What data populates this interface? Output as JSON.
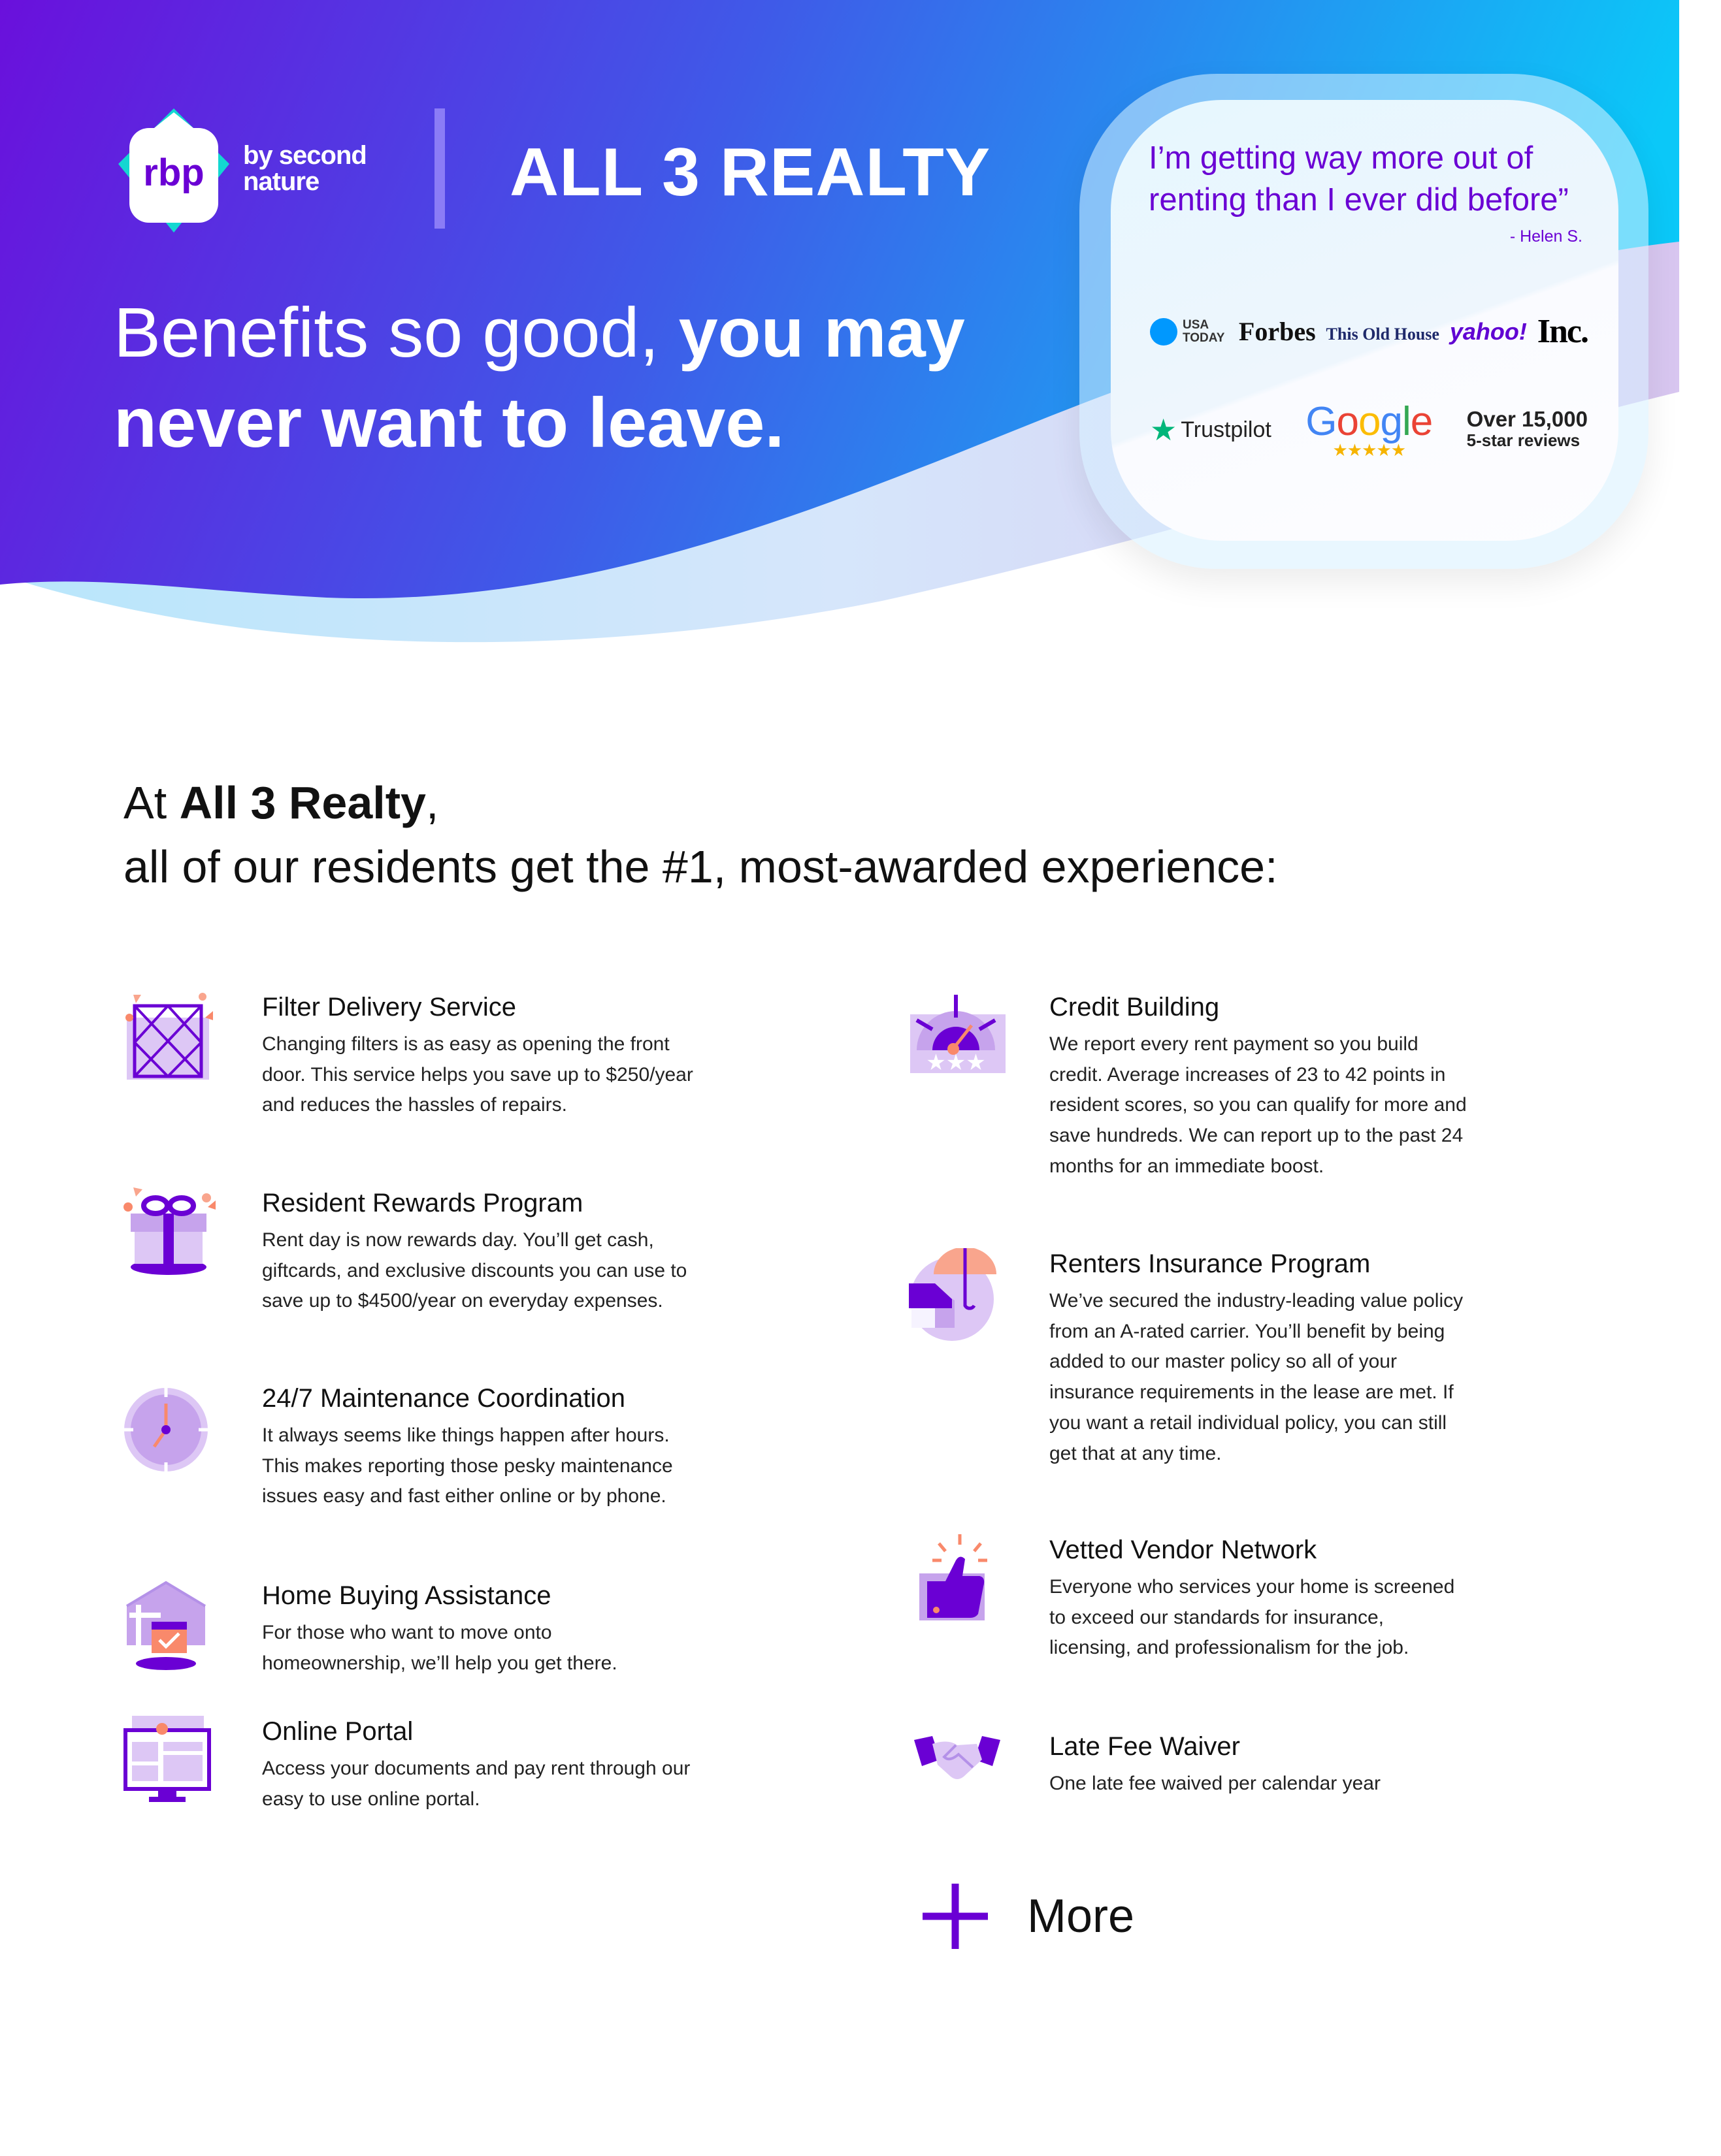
{
  "brand": {
    "logo_text": "rbp",
    "logo_byline": "by second nature",
    "company_name": "ALL 3 REALTY",
    "colors": {
      "primary_purple": "#6a00d4",
      "gradient_start": "#6a10dc",
      "gradient_end": "#0bc8f8",
      "accent_orange": "#f9896b"
    }
  },
  "hero": {
    "headline_regular": "Benefits so good, ",
    "headline_bold": "you may never want to leave."
  },
  "testimonial": {
    "quote": "I’m getting way more out of renting than I ever did before”",
    "author": "- Helen S."
  },
  "press_logos": [
    "USA TODAY",
    "Forbes",
    "This Old House",
    "yahoo!",
    "Inc."
  ],
  "reviews": {
    "trustpilot": "Trustpilot",
    "google": "Google",
    "google_stars": 5,
    "count_line1": "Over 15,000",
    "count_line2": "5-star reviews"
  },
  "intro": {
    "prefix": "At ",
    "company": "All 3 Realty",
    "suffix": ",",
    "line2": "all of our residents get the #1, most-awarded experience:"
  },
  "benefits_left": [
    {
      "icon": "filter-icon",
      "title": "Filter Delivery Service",
      "body": "Changing filters is as easy as opening the front door. This service helps you save up to $250/year and reduces the hassles of repairs."
    },
    {
      "icon": "gift-icon",
      "title": "Resident Rewards Program",
      "body": "Rent day is now rewards day. You’ll get cash, giftcards, and exclusive discounts you can use to save up to $4500/year on everyday expenses."
    },
    {
      "icon": "clock-icon",
      "title": "24/7 Maintenance Coordination",
      "body": "It always seems like things happen after hours. This makes reporting those pesky maintenance issues easy and fast either online or by phone."
    },
    {
      "icon": "home-calendar-icon",
      "title": "Home Buying Assistance",
      "body": "For those who want to move onto homeownership, we’ll help you get there."
    },
    {
      "icon": "monitor-icon",
      "title": "Online Portal",
      "body": "Access your documents and pay rent through our easy to use online portal."
    }
  ],
  "benefits_right": [
    {
      "icon": "credit-gauge-icon",
      "title": "Credit Building",
      "body": "We report every rent payment so you build credit. Average increases of 23 to 42 points in resident scores, so you can qualify for more and save hundreds. We can report up to the past 24 months for an immediate boost."
    },
    {
      "icon": "house-umbrella-icon",
      "title": "Renters Insurance Program",
      "body": "We’ve secured the industry-leading value policy from an A-rated carrier. You’ll benefit by being added to our master policy so all of your insurance requirements in the lease are met. If you want a retail individual policy, you can still get that at any time."
    },
    {
      "icon": "thumbs-up-icon",
      "title": "Vetted Vendor Network",
      "body": "Everyone who services your home is screened to exceed our standards for insurance, licensing, and professionalism for the job."
    },
    {
      "icon": "handshake-icon",
      "title": "Late Fee Waiver",
      "body": "One late fee waived per calendar year"
    }
  ],
  "more": {
    "label": "More"
  }
}
